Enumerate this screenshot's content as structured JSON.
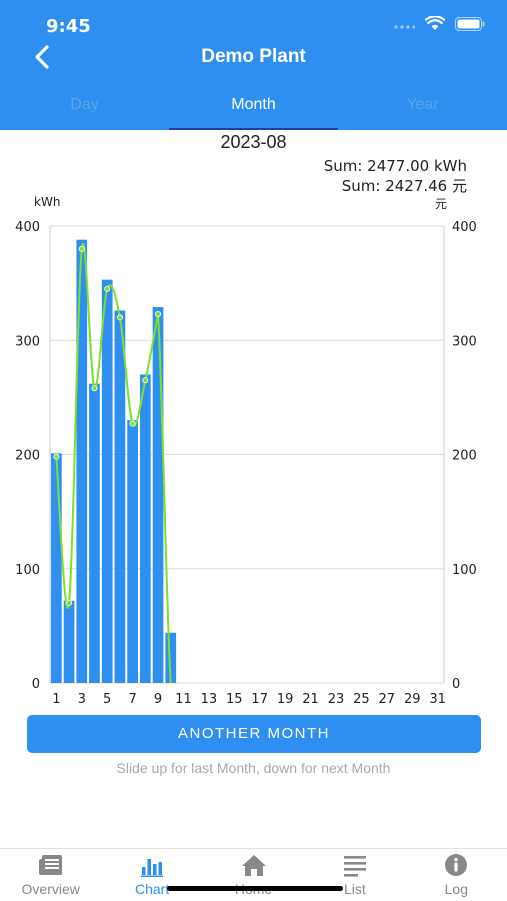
{
  "status": {
    "time": "9:45"
  },
  "header": {
    "title": "Demo Plant"
  },
  "tabs": [
    {
      "label": "Day"
    },
    {
      "label": "Month"
    },
    {
      "label": "Year"
    }
  ],
  "period": "2023-08",
  "sums": {
    "energy": "Sum: 2477.00 kWh",
    "money": "Sum: 2427.46 元"
  },
  "chart_data": {
    "type": "bar",
    "left_unit": "kWh",
    "right_unit": "元",
    "ylim": [
      0,
      400
    ],
    "yticks": [
      0,
      100,
      200,
      300,
      400
    ],
    "xticks": [
      "1",
      "3",
      "5",
      "7",
      "9",
      "11",
      "13",
      "15",
      "17",
      "19",
      "21",
      "23",
      "25",
      "27",
      "29",
      "31"
    ],
    "days": 31,
    "series": [
      {
        "type": "bar",
        "axis": "left",
        "values": [
          201,
          72,
          388,
          262,
          353,
          326,
          230,
          270,
          329,
          44
        ]
      },
      {
        "type": "line",
        "axis": "right",
        "values": [
          198,
          70,
          380,
          258,
          345,
          320,
          227,
          265,
          323
        ]
      }
    ],
    "colors": {
      "bar": "#2f8ff0",
      "line": "#7ee02a",
      "grid": "#d9d9d9"
    }
  },
  "actions": {
    "another_month": "ANOTHER MONTH"
  },
  "hint": "Slide up for last Month, down for next Month",
  "tabbar": [
    {
      "label": "Overview",
      "icon": "newspaper-icon"
    },
    {
      "label": "Chart",
      "icon": "bar-chart-icon"
    },
    {
      "label": "Home",
      "icon": "home-icon"
    },
    {
      "label": "List",
      "icon": "list-icon"
    },
    {
      "label": "Log",
      "icon": "info-icon"
    }
  ]
}
